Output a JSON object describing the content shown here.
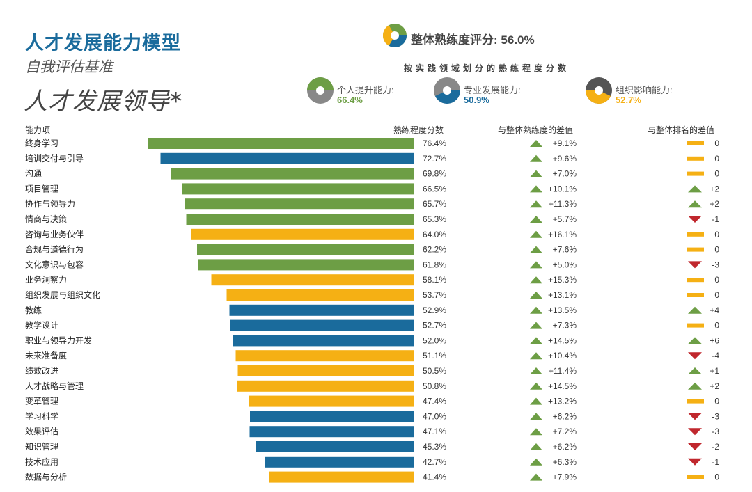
{
  "header": {
    "title": "人才发展能力模型",
    "subtitle": "自我评估基准",
    "big_title": "人才发展领导*",
    "overall_label": "整体熟练度评分:",
    "overall_value": "56.0%",
    "domain_caption": "按实践领域划分的熟练程度分数"
  },
  "domains": [
    {
      "label": "个人提升能力:",
      "value": "66.4%",
      "color": "#6d9e45"
    },
    {
      "label": "专业发展能力:",
      "value": "50.9%",
      "color": "#1a6b9c"
    },
    {
      "label": "组织影响能力:",
      "value": "52.7%",
      "color": "#f5b014"
    }
  ],
  "columns": {
    "name": "能力项",
    "score": "熟练程度分数",
    "diff_overall": "与整体熟练度的差值",
    "diff_rank": "与整体排名的差值"
  },
  "colors": {
    "personal": "#6d9e45",
    "professional": "#1a6b9c",
    "organizational": "#f5b014",
    "up": "#6d9e45",
    "down": "#c0272d",
    "flat": "#f5b014"
  },
  "chart_data": {
    "type": "bar",
    "orientation": "horizontal",
    "categories": [
      "终身学习",
      "培训交付与引导",
      "沟通",
      "项目管理",
      "协作与领导力",
      "情商与决策",
      "咨询与业务伙伴",
      "合规与道德行为",
      "文化意识与包容",
      "业务洞察力",
      "组织发展与组织文化",
      "教练",
      "教学设计",
      "职业与领导力开发",
      "未来准备度",
      "绩效改进",
      "人才战略与管理",
      "变革管理",
      "学习科学",
      "效果评估",
      "知识管理",
      "技术应用",
      "数据与分析"
    ],
    "values": [
      76.4,
      72.7,
      69.8,
      66.5,
      65.7,
      65.3,
      64.0,
      62.2,
      61.8,
      58.1,
      53.7,
      52.9,
      52.7,
      52.0,
      51.1,
      50.5,
      50.8,
      47.4,
      47.0,
      47.1,
      45.3,
      42.7,
      41.4
    ],
    "value_labels": [
      "76.4%",
      "72.7%",
      "69.8%",
      "66.5%",
      "65.7%",
      "65.3%",
      "64.0%",
      "62.2%",
      "61.8%",
      "58.1%",
      "53.7%",
      "52.9%",
      "52.7%",
      "52.0%",
      "51.1%",
      "50.5%",
      "50.8%",
      "47.4%",
      "47.0%",
      "47.1%",
      "45.3%",
      "42.7%",
      "41.4%"
    ],
    "domain": [
      "personal",
      "professional",
      "personal",
      "personal",
      "personal",
      "personal",
      "organizational",
      "personal",
      "personal",
      "organizational",
      "organizational",
      "professional",
      "professional",
      "professional",
      "organizational",
      "organizational",
      "organizational",
      "organizational",
      "professional",
      "professional",
      "professional",
      "professional",
      "organizational"
    ],
    "diff_overall": [
      "+9.1%",
      "+9.6%",
      "+7.0%",
      "+10.1%",
      "+11.3%",
      "+5.7%",
      "+16.1%",
      "+7.6%",
      "+5.0%",
      "+15.3%",
      "+13.1%",
      "+13.5%",
      "+7.3%",
      "+14.5%",
      "+10.4%",
      "+11.4%",
      "+14.5%",
      "+13.2%",
      "+6.2%",
      "+7.2%",
      "+6.2%",
      "+6.3%",
      "+7.9%"
    ],
    "diff_rank": [
      "0",
      "0",
      "0",
      "+2",
      "+2",
      "-1",
      "0",
      "0",
      "-3",
      "0",
      "0",
      "+4",
      "0",
      "+6",
      "-4",
      "+1",
      "+2",
      "0",
      "-3",
      "-3",
      "-2",
      "-1",
      "0"
    ]
  }
}
